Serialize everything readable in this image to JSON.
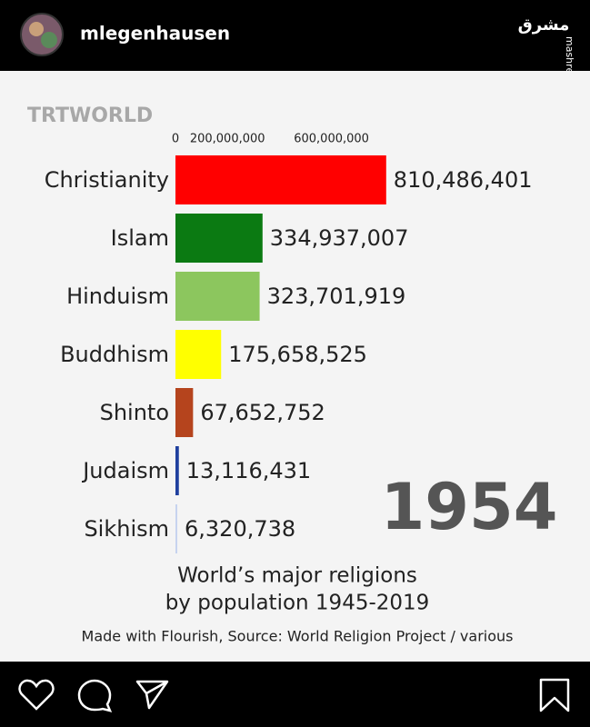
{
  "header": {
    "username": "mlegenhausen",
    "logo": "مشرق",
    "watermark": "mashreghnews.ir"
  },
  "chart_data": {
    "type": "bar",
    "orientation": "horizontal",
    "brand": "TRTWORLD",
    "year": "1954",
    "title": [
      "World’s major religions",
      "by population 1945-2019"
    ],
    "source": "Made with Flourish, Source: World Religion Project / various",
    "categories": [
      "Christianity",
      "Islam",
      "Hinduism",
      "Buddhism",
      "Shinto",
      "Judaism",
      "Sikhism"
    ],
    "values": [
      810486401,
      334937007,
      323701919,
      175658525,
      67652752,
      13116431,
      6320738
    ],
    "value_labels": [
      "810,486,401",
      "334,937,007",
      "323,701,919",
      "175,658,525",
      "67,652,752",
      "13,116,431",
      "6,320,738"
    ],
    "colors": [
      "#ff0000",
      "#0b7a12",
      "#8cc65e",
      "#ffff00",
      "#b5441d",
      "#1f3f9e",
      "#c6d3ef"
    ],
    "xlim": [
      0,
      1000000000
    ],
    "xticks": [
      0,
      {
        "value": 200000000,
        "label": "200,000,000"
      },
      {
        "value": 600000000,
        "label": "600,000,000"
      }
    ],
    "grid": false
  }
}
